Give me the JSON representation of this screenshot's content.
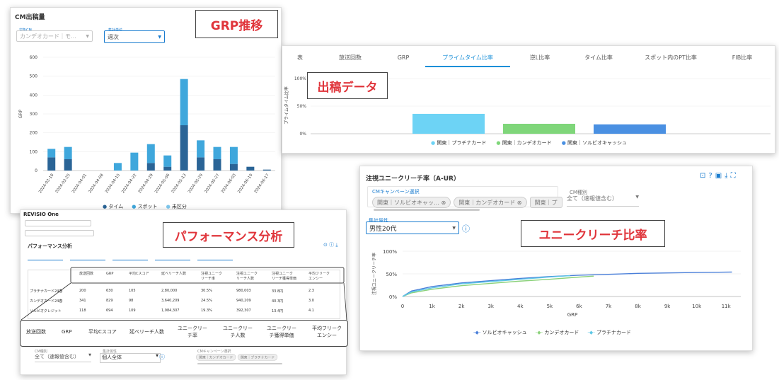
{
  "callouts": {
    "grp": "GRP推移",
    "data": "出稿データ",
    "perf": "パフォーマンス分析",
    "reach": "ユニークリーチ比率"
  },
  "cm_panel": {
    "title": "CM出稿量",
    "cm_label": "対象CM",
    "cm_value": "カンデオカード｜モ…",
    "unit_label": "集計単位",
    "unit_value": "週次",
    "y_label": "GRP",
    "legend": [
      "タイム",
      "スポット",
      "未区分"
    ],
    "colors": {
      "time": "#2a6496",
      "spot": "#3fa7dc",
      "none": "#7fc8ee"
    }
  },
  "grp_chart": {
    "type": "bar",
    "categories": [
      "2024-03-18",
      "2024-03-25",
      "2024-04-01",
      "2024-04-08",
      "2024-04-15",
      "2024-04-22",
      "2024-04-29",
      "2024-05-06",
      "2024-05-13",
      "2024-05-20",
      "2024-05-27",
      "2024-06-03",
      "2024-06-10",
      "2024-06-17"
    ],
    "series": [
      {
        "name": "タイム",
        "values": [
          70,
          60,
          0,
          0,
          0,
          0,
          40,
          20,
          240,
          70,
          60,
          35,
          20,
          5
        ]
      },
      {
        "name": "スポット",
        "values": [
          45,
          65,
          0,
          0,
          40,
          95,
          100,
          60,
          245,
          90,
          65,
          90,
          0,
          0
        ]
      }
    ],
    "ylim": [
      0,
      600
    ],
    "yticks": [
      0,
      100,
      200,
      300,
      400,
      500,
      600
    ]
  },
  "data_panel": {
    "tabs": [
      "表",
      "放送回数",
      "GRP",
      "プライムタイム比率",
      "逆L比率",
      "タイム比率",
      "スポット内のPT比率",
      "FIB比率"
    ],
    "active_tab": 3,
    "y_label": "プライムタイム比率",
    "yticks": [
      "100%",
      "50%",
      "0%"
    ],
    "legend": [
      "関東｜プラチナカード",
      "関東｜カンデオカード",
      "関東｜ソルビオキャッシュ"
    ],
    "colors": [
      "#6dd3f5",
      "#7fd67a",
      "#4a90e2"
    ]
  },
  "prime_chart": {
    "type": "bar",
    "categories": [
      "関東｜プラチナカード",
      "関東｜カンデオカード",
      "関東｜ソルビオキャッシュ"
    ],
    "values": [
      36,
      18,
      17
    ],
    "ylim": [
      0,
      100
    ]
  },
  "perf_panel": {
    "logo": "REVISIO One",
    "title": "パフォーマンス分析",
    "headers": [
      "放送回数",
      "GRP",
      "平均Cスコア",
      "延べリーチ人数",
      "注視ユニーク\nリーチ率",
      "注視ユニーク\nリーチ人数",
      "注視ユニーク\nリーチ獲得単価",
      "平均フリーク\nエンシー"
    ],
    "rows": [
      {
        "name": "プラチナカード24春",
        "cells": [
          "200",
          "630",
          "105",
          "2,80,000",
          "30.5%",
          "980,003",
          "33.8円",
          "2.3"
        ]
      },
      {
        "name": "カンデオカード24春",
        "cells": [
          "341",
          "829",
          "98",
          "3,640,209",
          "24.5%",
          "940,209",
          "40.3円",
          "3.0"
        ]
      },
      {
        "name": "ソルビオクレジット",
        "cells": [
          "118",
          "694",
          "109",
          "1,984,307",
          "19.3%",
          "392,307",
          "13.4円",
          "4.1"
        ]
      }
    ],
    "big_headers": [
      "放送回数",
      "GRP",
      "平均Cスコア",
      "延べリーチ人数",
      "ユニークリー\nチ率",
      "ユニークリー\nチ人数",
      "ユニークリー\nチ獲得単価",
      "平均フリーク\nエンシー"
    ],
    "cm_type_label": "CM種別",
    "cm_type_value": "全て（速報値含む）",
    "agg_label": "集計属性",
    "agg_value": "個人全体",
    "campaign_label": "CMキャンペーン選択",
    "campaign_chips": [
      "関東｜カンデオカード",
      "関東｜プラチナカード"
    ]
  },
  "reach_panel": {
    "title": "注視ユニークリーチ率（A-UR）",
    "campaign_label": "CMキャンペーン選択",
    "chips": [
      "関東｜ソルビオキャッ…",
      "関東｜カンデオカード",
      "関東｜プ"
    ],
    "cm_type_label": "CM種別",
    "cm_type_value": "全て（速報値含む）",
    "attr_label": "集計属性",
    "attr_value": "男性20代",
    "y_label": "注視ユニークリーチ率",
    "x_label": "GRP",
    "yticks": [
      "100%",
      "50%",
      "0%"
    ],
    "xticks": [
      "0",
      "1k",
      "2k",
      "3k",
      "4k",
      "5k",
      "6k",
      "7k",
      "8k",
      "9k",
      "10k",
      "11k"
    ],
    "legend": [
      "ソルビオキャッシュ",
      "カンデオカード",
      "プラチナカード"
    ],
    "colors": [
      "#4a7fd9",
      "#8bd17a",
      "#5ec8e6"
    ]
  },
  "reach_chart": {
    "type": "line",
    "x_unit": "GRP",
    "series": [
      {
        "name": "ソルビオキャッシュ",
        "x": [
          0,
          300,
          1000,
          2000,
          3000,
          4000,
          5000,
          6000,
          7000,
          8000,
          9000,
          10000,
          11200
        ],
        "y": [
          0,
          12,
          22,
          30,
          35,
          40,
          44,
          47,
          49,
          51,
          52,
          53,
          54
        ]
      },
      {
        "name": "カンデオカード",
        "x": [
          0,
          300,
          1000,
          2000,
          3000,
          4000,
          5000,
          5800,
          6500
        ],
        "y": [
          0,
          8,
          16,
          24,
          29,
          34,
          38,
          42,
          45
        ]
      },
      {
        "name": "プラチナカード",
        "x": [
          0,
          300,
          1000,
          2000,
          3000,
          4000,
          5000,
          5700
        ],
        "y": [
          0,
          10,
          19,
          28,
          33,
          38,
          43,
          46
        ]
      }
    ],
    "xlim": [
      0,
      11500
    ],
    "ylim": [
      0,
      100
    ]
  }
}
